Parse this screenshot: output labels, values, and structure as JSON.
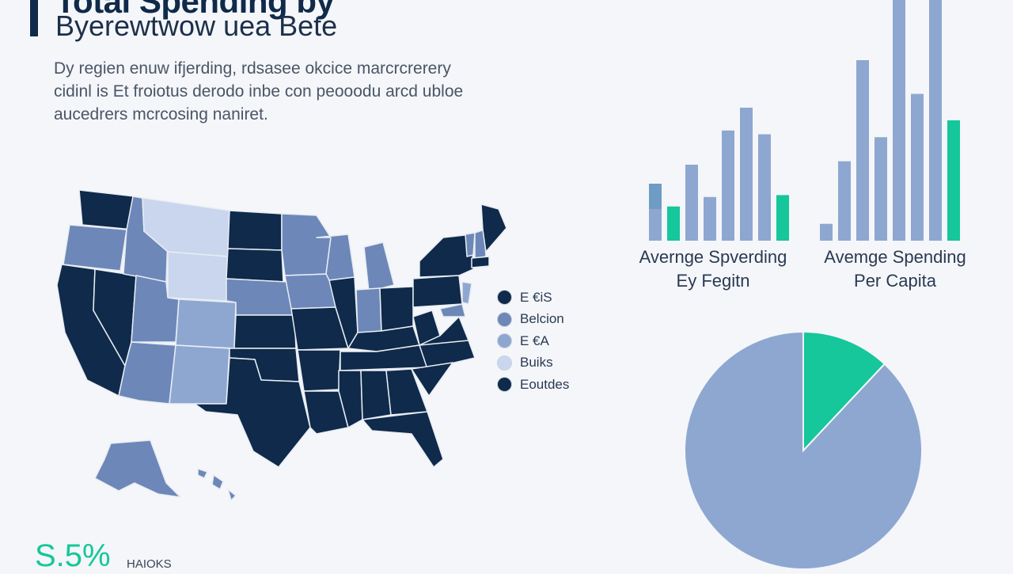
{
  "header": {
    "title": "Total Spending by",
    "subtitle": "Byerewtwow uea Bete"
  },
  "description": [
    "Dy regien enuw ifjerding, rdsasee okcice marcrcrerery",
    "cidinl is Et froiotus derodo inbe con peooodu arcd ubloe",
    "aucedrers mcrcosing naniret."
  ],
  "colors": {
    "navy": "#0f2a4a",
    "mid_blue": "#6d87b8",
    "light_blue": "#8ea7d1",
    "pale_blue": "#c9d6ee",
    "teal": "#15c79a",
    "steel": "#6e9cc4"
  },
  "map_legend": [
    {
      "label": "E €iS",
      "color": "#0f2a4a"
    },
    {
      "label": "Belcion",
      "color": "#6d87b8"
    },
    {
      "label": "E €A",
      "color": "#8ea7d1"
    },
    {
      "label": "Buiks",
      "color": "#c9d6ee"
    },
    {
      "label": "Eoutdes",
      "color": "#0f2a4a"
    }
  ],
  "chart_data": [
    {
      "type": "bar",
      "caption": [
        "Avernge Spverding",
        "Ey Fegitn"
      ],
      "values": [
        30,
        18,
        40,
        23,
        58,
        70,
        56,
        24
      ],
      "highlight": [
        false,
        true,
        false,
        false,
        false,
        false,
        false,
        true
      ],
      "ylim": [
        0,
        100
      ]
    },
    {
      "type": "bar",
      "caption": [
        "Avemge Spending",
        "Per Capita"
      ],
      "values": [
        7,
        33,
        75,
        43,
        100,
        61,
        100,
        50
      ],
      "highlight": [
        false,
        false,
        false,
        false,
        false,
        false,
        false,
        true
      ],
      "ylim": [
        0,
        100
      ]
    },
    {
      "type": "pie",
      "slices": [
        {
          "value": 88,
          "color": "#8ea7d1"
        },
        {
          "value": 12,
          "color": "#15c79a"
        }
      ]
    }
  ],
  "stat": {
    "value": "S.5%",
    "label": "HAIOKS"
  }
}
